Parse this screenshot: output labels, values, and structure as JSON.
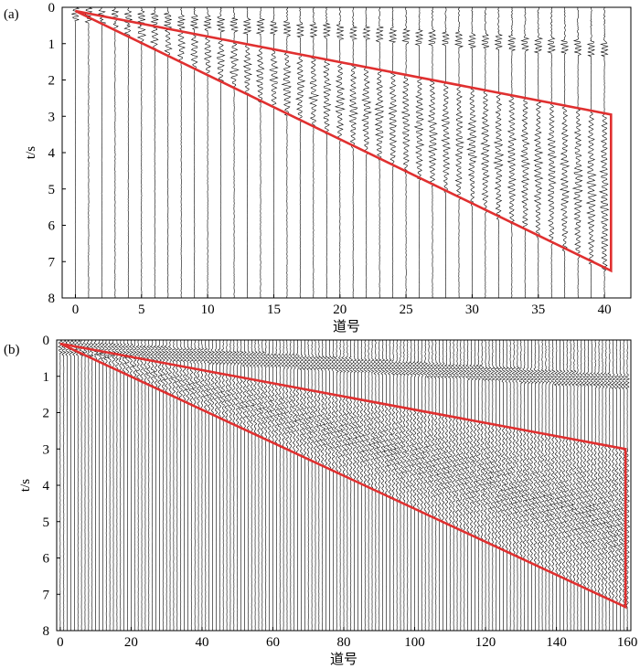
{
  "colors": {
    "traces": "#000000",
    "box": "#e03030",
    "frame": "#000000"
  },
  "chart_data": [
    {
      "type": "line",
      "panel_tag": "(a)",
      "xlabel": "道号",
      "ylabel": "t/s",
      "xlim": [
        -1,
        42
      ],
      "ylim": [
        0,
        8
      ],
      "y_inverted": true,
      "grid": false,
      "legend": "none",
      "xticks": [
        0,
        5,
        10,
        15,
        20,
        25,
        30,
        35,
        40
      ],
      "yticks": [
        0,
        1,
        2,
        3,
        4,
        5,
        6,
        7,
        8
      ],
      "trace_count": 41,
      "trace_first": 0,
      "trace_step": 1,
      "direct_wave_end_time_s": 1.0,
      "highlight_polygon": [
        [
          0,
          0.1
        ],
        [
          40.5,
          2.95
        ],
        [
          40.5,
          7.25
        ]
      ]
    },
    {
      "type": "line",
      "panel_tag": "(b)",
      "xlabel": "道号",
      "ylabel": "t/s",
      "xlim": [
        -1,
        161
      ],
      "ylim": [
        0,
        8
      ],
      "y_inverted": true,
      "grid": false,
      "legend": "none",
      "xticks": [
        0,
        20,
        40,
        60,
        80,
        100,
        120,
        140,
        160
      ],
      "yticks": [
        0,
        1,
        2,
        3,
        4,
        5,
        6,
        7,
        8
      ],
      "trace_count": 161,
      "trace_first": 0,
      "trace_step": 1,
      "direct_wave_end_time_s": 1.0,
      "highlight_polygon": [
        [
          0,
          0.1
        ],
        [
          159.5,
          3.0
        ],
        [
          159.5,
          7.35
        ]
      ]
    }
  ]
}
